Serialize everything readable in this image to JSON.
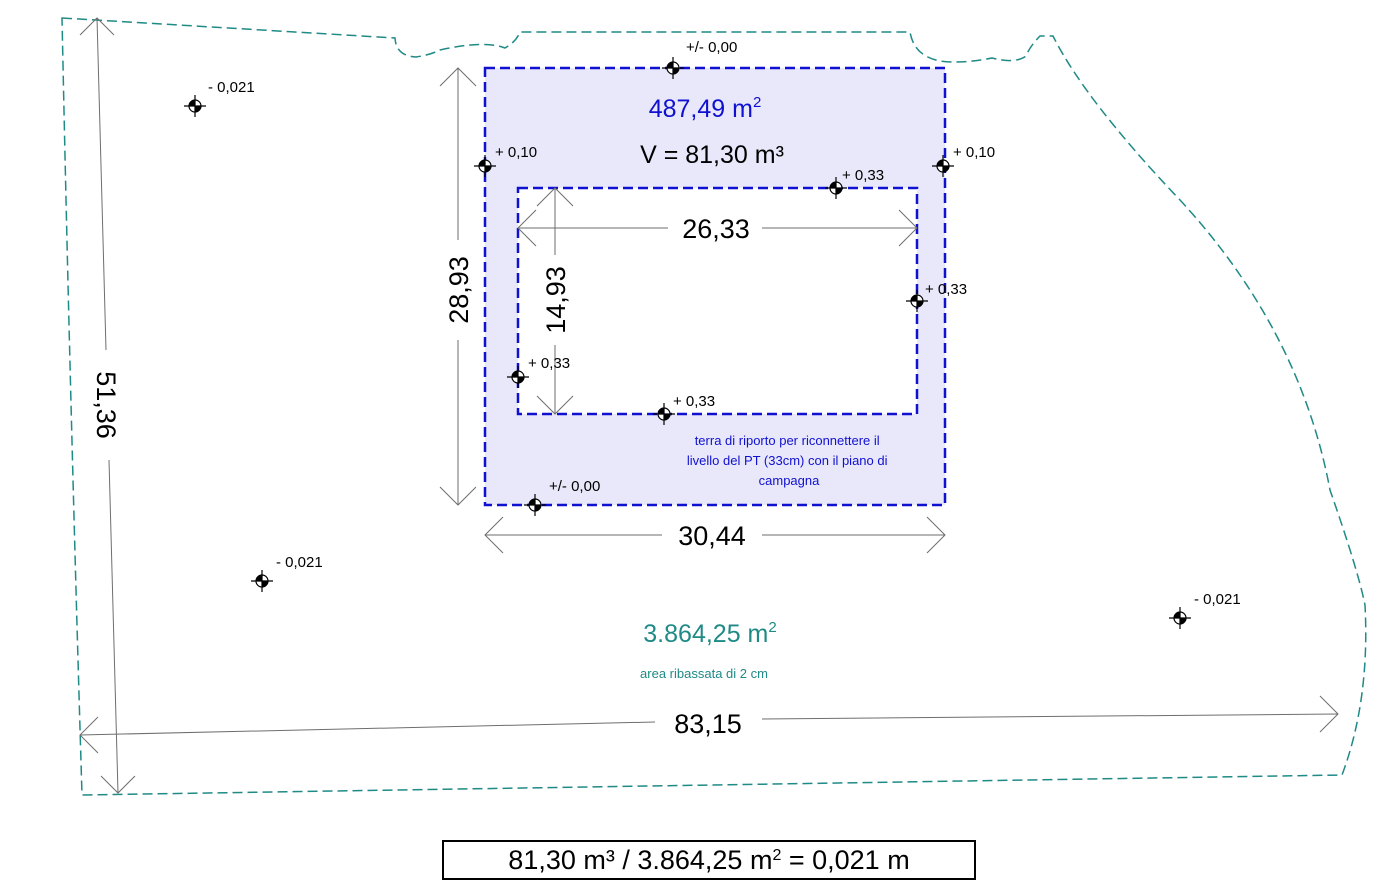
{
  "colors": {
    "site_outline": "#1f8a86",
    "fill_zone_border": "#1010d0",
    "fill_zone_background": "#e8e8fa",
    "dimension_lines": "#6e6e6e",
    "teal_text": "#1f8a86",
    "blue_text": "#1010d0"
  },
  "fill_zone": {
    "area_value": "487,49 m",
    "area_exp": "2",
    "volume": "V = 81,30 m³",
    "note_line1": "terra di riporto per riconnettere il",
    "note_line2": "livello del PT (33cm) con il piano di",
    "note_line3": "campagna"
  },
  "site": {
    "area_value": "3.864,25 m",
    "area_exp": "2",
    "note": "area ribassata di 2 cm"
  },
  "dimensions": {
    "site_width": "83,15",
    "site_depth": "51,36",
    "zone_width": "30,44",
    "zone_depth": "28,93",
    "building_width": "26,33",
    "building_depth": "14,93"
  },
  "levels": {
    "site_nw": "- 0,021",
    "site_sw": "- 0,021",
    "site_e": "- 0,021",
    "zone_top": "+/- 0,00",
    "zone_bottom": "+/- 0,00",
    "zone_left": "+ 0,10",
    "zone_right": "+ 0,10",
    "bldg_top": "+ 0,33",
    "bldg_right": "+ 0,33",
    "bldg_left": "+ 0,33",
    "bldg_bottom": "+ 0,33"
  },
  "formula": {
    "text_a": "81,30 m³ / 3.864,25 m",
    "exp": "2",
    "text_b": " = 0,021 m"
  }
}
